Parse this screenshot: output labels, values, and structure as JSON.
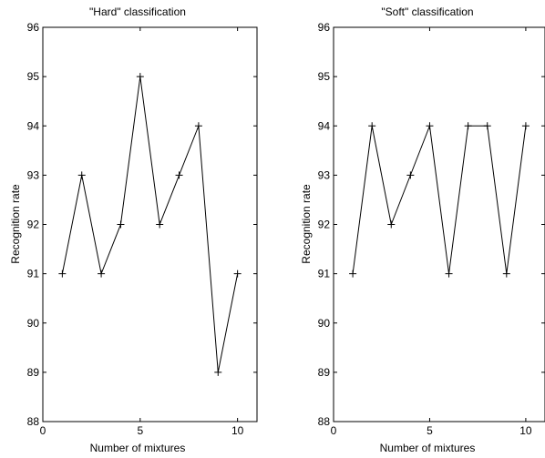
{
  "chart_data": [
    {
      "type": "line",
      "title": "\"Hard\" classification",
      "xlabel": "Number of mixtures",
      "ylabel": "Recognition rate",
      "xlim": [
        0,
        11
      ],
      "ylim": [
        88,
        96
      ],
      "xticks": [
        0,
        5,
        10
      ],
      "yticks": [
        88,
        89,
        90,
        91,
        92,
        93,
        94,
        95,
        96
      ],
      "marker": "+",
      "line_color": "#000000",
      "grid": false,
      "series": [
        {
          "x": [
            1,
            2,
            3,
            4,
            5,
            6,
            7,
            8,
            9,
            10
          ],
          "y": [
            91,
            93,
            91,
            92,
            95,
            92,
            93,
            94,
            89,
            91
          ]
        }
      ]
    },
    {
      "type": "line",
      "title": "\"Soft\" classification",
      "xlabel": "Number of mixtures",
      "ylabel": "Recognition rate",
      "xlim": [
        0,
        11
      ],
      "ylim": [
        88,
        96
      ],
      "xticks": [
        0,
        5,
        10
      ],
      "yticks": [
        88,
        89,
        90,
        91,
        92,
        93,
        94,
        95,
        96
      ],
      "marker": "+",
      "line_color": "#000000",
      "grid": false,
      "series": [
        {
          "x": [
            1,
            2,
            3,
            4,
            5,
            6,
            7,
            8,
            9,
            10
          ],
          "y": [
            91,
            94,
            92,
            93,
            94,
            91,
            94,
            94,
            91,
            94
          ]
        }
      ]
    }
  ]
}
